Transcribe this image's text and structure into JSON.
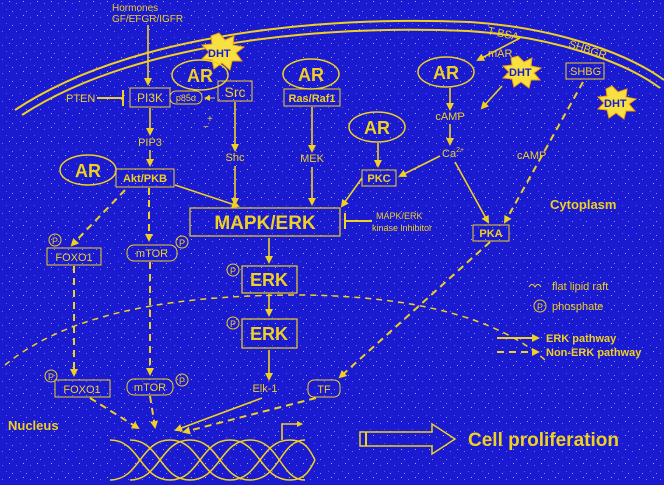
{
  "labels": {
    "hormones_line1": "Hormones",
    "hormones_line2": "GF/EFGR/IGFR",
    "tbsa": "T-BSA",
    "mar": "mAR",
    "shbgr": "SHBGR",
    "shbg": "SHBG",
    "dht": "DHT",
    "ar": "AR",
    "src": "Src",
    "ras_raf1": "Ras/Raf1",
    "pten": "PTEN",
    "pi3k": "PI3K",
    "p85": "p85α",
    "plus_minus": "+\n−",
    "pip3": "PIP3",
    "shc": "Shc",
    "mek": "MEK",
    "camp": "cAMP",
    "ca": "Ca",
    "ca_sup": "2+",
    "pkc": "PKC",
    "pka": "PKA",
    "akt_pkb": "Akt/PKB",
    "mapk_erk": "MAPK/ERK",
    "inhibitor_line1": "MAPK/ERK",
    "inhibitor_line2": "kinase inhibitor",
    "cytoplasm": "Cytoplasm",
    "p": "P",
    "foxo1": "FOXO1",
    "mtor": "mTOR",
    "erk": "ERK",
    "elk1": "Elk-1",
    "tf": "TF",
    "nucleus": "Nucleus",
    "cell_proliferation": "Cell proliferation"
  },
  "legend": {
    "lipid_raft": "flat lipid raft",
    "phosphate": "phosphate",
    "erk_pathway": "ERK pathway",
    "non_erk_pathway": "Non-ERK pathway"
  },
  "colors": {
    "background": "#1a1ad0",
    "foreground": "#f0d020",
    "dht_burst": "#f8e040"
  }
}
